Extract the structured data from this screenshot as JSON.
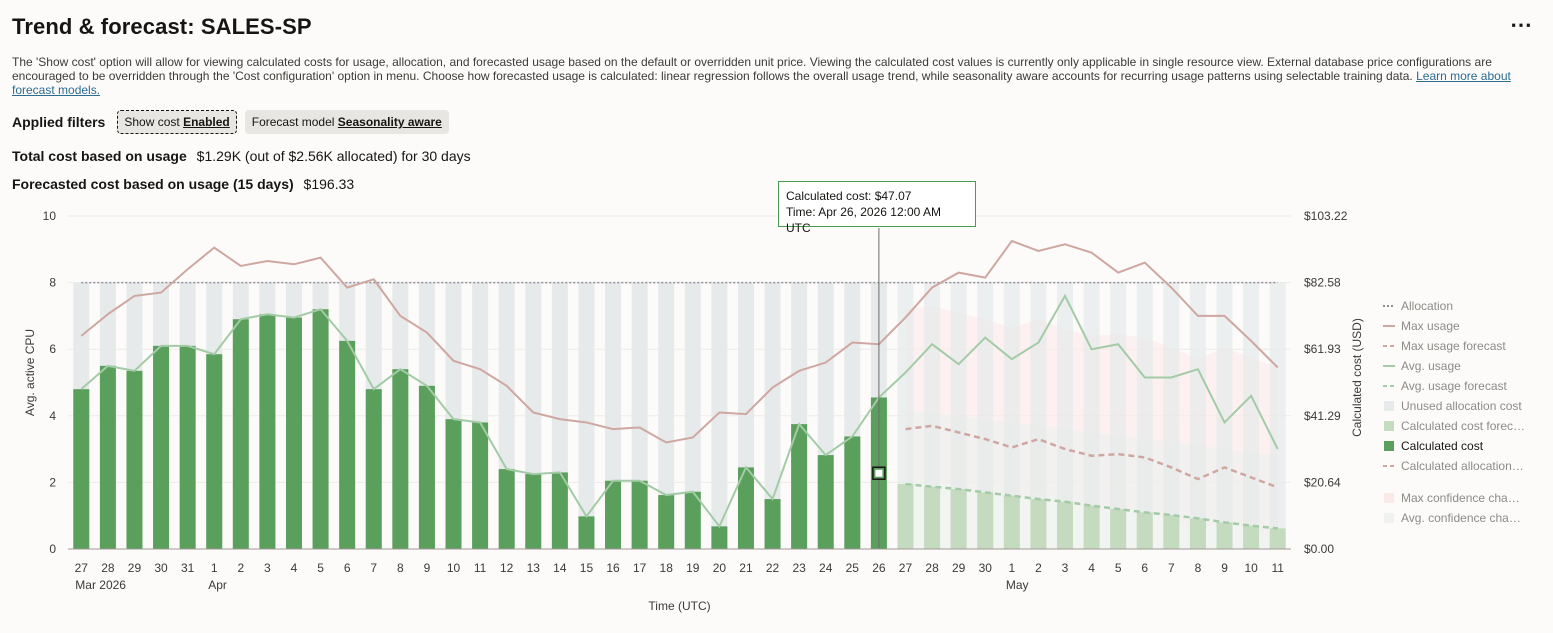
{
  "header": {
    "title": "Trend & forecast: SALES-SP",
    "more_label": "⋯"
  },
  "description": {
    "text": "The 'Show cost' option will allow for viewing calculated costs for usage, allocation, and forecasted usage based on the default or overridden unit price. Viewing the calculated cost values is currently only applicable in single resource view. External database price configurations are encouraged to be overridden through the 'Cost configuration' option in menu. Choose how forecasted usage is calculated: linear regression follows the overall usage trend, while seasonality aware accounts for recurring usage patterns using selectable training data.",
    "link": "Learn more about forecast models."
  },
  "filters": {
    "label": "Applied filters",
    "show_cost": {
      "name": "Show cost",
      "value": "Enabled"
    },
    "forecast_model": {
      "name": "Forecast model",
      "value": "Seasonality aware"
    }
  },
  "stats": {
    "total_label": "Total cost based on usage",
    "total_value": "$1.29K (out of $2.56K allocated) for 30 days",
    "forecast_label": "Forecasted cost based on usage (15 days)",
    "forecast_value": "$196.33"
  },
  "tooltip": {
    "line1": "Calculated cost: $47.07",
    "line2": "Time: Apr 26, 2026 12:00 AM UTC"
  },
  "colors": {
    "bar": "#5a9f5c",
    "bar_forecast": "#c4dbc0",
    "unused": "#e6eaea",
    "max": "#cfa7a1",
    "avg": "#a3cba6",
    "allocation": "#8e8e9a",
    "tooltip_border": "#4b9a54"
  },
  "chart_data": {
    "type": "bar",
    "xlabel": "Time (UTC)",
    "ylabel": "Avg. active CPU",
    "y2label": "Calculated cost (USD)",
    "ylim": [
      0,
      10
    ],
    "yticks": [
      "0",
      "2",
      "4",
      "6",
      "8",
      "10"
    ],
    "y2ticks": [
      "$0.00",
      "$20.64",
      "$41.29",
      "$61.93",
      "$82.58",
      "$103.22"
    ],
    "x": [
      "27",
      "28",
      "29",
      "30",
      "31",
      "1",
      "2",
      "3",
      "4",
      "5",
      "6",
      "7",
      "8",
      "9",
      "10",
      "11",
      "12",
      "13",
      "14",
      "15",
      "16",
      "17",
      "18",
      "19",
      "20",
      "21",
      "22",
      "23",
      "24",
      "25",
      "26",
      "27",
      "28",
      "29",
      "30",
      "1",
      "2",
      "3",
      "4",
      "5",
      "6",
      "7",
      "8",
      "9",
      "10",
      "11"
    ],
    "month_labels": [
      {
        "index": 0,
        "label": "Mar 2026"
      },
      {
        "index": 5,
        "label": "Apr"
      },
      {
        "index": 35,
        "label": "May"
      }
    ],
    "allocation": 8,
    "forecast_start_index": 31,
    "calculated_cost": [
      4.8,
      5.5,
      5.35,
      6.1,
      6.1,
      5.85,
      6.9,
      7.05,
      6.95,
      7.2,
      6.25,
      4.8,
      5.4,
      4.9,
      3.9,
      3.8,
      2.4,
      2.25,
      2.3,
      0.98,
      2.05,
      2.05,
      1.62,
      1.72,
      0.68,
      2.45,
      1.5,
      3.75,
      2.82,
      3.38,
      4.55,
      1.95,
      1.87,
      1.8,
      1.7,
      1.6,
      1.5,
      1.42,
      1.3,
      1.2,
      1.1,
      1.02,
      0.92,
      0.8,
      0.7,
      0.62
    ],
    "avg_usage": [
      4.8,
      5.5,
      5.35,
      6.1,
      6.1,
      5.85,
      6.9,
      7.05,
      6.95,
      7.2,
      6.25,
      4.8,
      5.4,
      4.9,
      3.9,
      3.8,
      2.4,
      2.25,
      2.3,
      0.98,
      2.05,
      2.05,
      1.62,
      1.72,
      0.68,
      2.45,
      1.5,
      3.75,
      2.82,
      3.38,
      4.55,
      5.3,
      6.15,
      5.55,
      6.35,
      5.7,
      6.2,
      7.6,
      6.0,
      6.15,
      5.15,
      5.15,
      5.4,
      3.8,
      4.6,
      3.0
    ],
    "max_usage": [
      6.4,
      7.05,
      7.6,
      7.7,
      8.4,
      9.05,
      8.5,
      8.65,
      8.55,
      8.75,
      7.85,
      8.1,
      7.0,
      6.5,
      5.65,
      5.4,
      4.9,
      4.1,
      3.9,
      3.8,
      3.6,
      3.65,
      3.2,
      3.35,
      4.1,
      4.05,
      4.85,
      5.35,
      5.6,
      6.2,
      6.15,
      6.95,
      7.85,
      8.3,
      8.15,
      9.25,
      8.95,
      9.15,
      8.9,
      8.3,
      8.6,
      7.85,
      7.0,
      7.0,
      6.25,
      5.45
    ],
    "max_usage_forecast": {
      "start_index": 31,
      "values": [
        3.6,
        3.7,
        3.5,
        3.3,
        3.05,
        3.3,
        3.0,
        2.8,
        2.85,
        2.75,
        2.45,
        2.1,
        2.45,
        2.15,
        1.85
      ]
    },
    "avg_usage_forecast": {
      "start_index": 31,
      "values": [
        1.95,
        1.87,
        1.8,
        1.7,
        1.6,
        1.5,
        1.42,
        1.3,
        1.2,
        1.1,
        1.02,
        0.92,
        0.8,
        0.7,
        0.62
      ]
    },
    "legend": [
      {
        "name": "Allocation",
        "style": "dotted",
        "color": "#8e8e9a"
      },
      {
        "name": "Max usage",
        "style": "line",
        "color": "#cfa7a1"
      },
      {
        "name": "Max usage forecast",
        "style": "dash",
        "color": "#cfa7a1"
      },
      {
        "name": "Avg. usage",
        "style": "line",
        "color": "#a3cba6"
      },
      {
        "name": "Avg. usage forecast",
        "style": "dash",
        "color": "#a3cba6"
      },
      {
        "name": "Unused allocation cost",
        "style": "box",
        "color": "#e6eaea"
      },
      {
        "name": "Calculated cost forec…",
        "style": "box",
        "color": "#c4dbc0"
      },
      {
        "name": "Calculated cost",
        "style": "box",
        "color": "#5a9f5c"
      },
      {
        "name": "Calculated allocation…",
        "style": "dash",
        "color": "#cfa7a1"
      },
      {
        "name": "Max confidence cha…",
        "style": "box",
        "color": "#fbe9e7"
      },
      {
        "name": "Avg. confidence cha…",
        "style": "box",
        "color": "#eef1ee"
      }
    ],
    "legend_position": "right",
    "grid": true,
    "highlight_index": 30
  }
}
